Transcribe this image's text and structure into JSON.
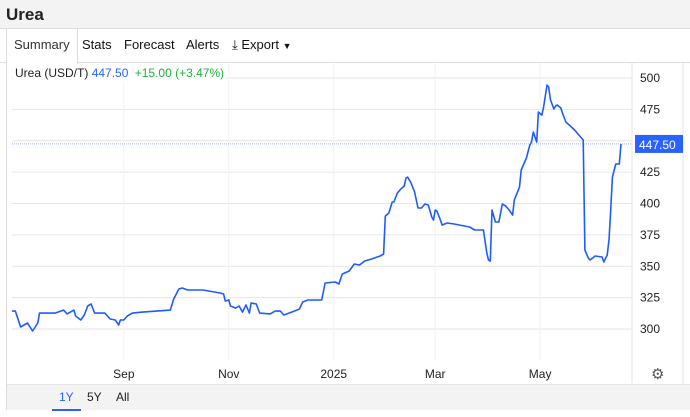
{
  "header": {
    "title": "Urea"
  },
  "tabs": [
    {
      "label": "Summary",
      "active": true
    },
    {
      "label": "Stats"
    },
    {
      "label": "Forecast"
    },
    {
      "label": "Alerts"
    },
    {
      "label": "Export",
      "icon": "download-icon",
      "dropdown": true
    }
  ],
  "legend": {
    "name": "Urea (USD/T)",
    "price": "447.50",
    "change": "+15.00 (+3.47%)"
  },
  "colors": {
    "line": "#1f5cff",
    "price": "#2962ff",
    "change": "#22b03a",
    "badge": "#2962ff"
  },
  "range_buttons": [
    {
      "label": "1Y",
      "active": true
    },
    {
      "label": "5Y"
    },
    {
      "label": "All"
    }
  ],
  "settings_icon": "gear-icon",
  "chart_data": {
    "type": "line",
    "title": "",
    "xlabel": "",
    "ylabel": "",
    "ylim": [
      274.5,
      512
    ],
    "xlim": [
      "2024-06-28",
      "2025-06-17"
    ],
    "y_ticks": [
      300,
      325,
      350,
      375,
      400,
      425,
      450,
      475,
      500
    ],
    "y_tick_labels": [
      "300",
      "325",
      "350",
      "375",
      "400",
      "425",
      "",
      "475",
      "500"
    ],
    "x_ticks": [
      {
        "date": "2024-09-01",
        "label": "Sep"
      },
      {
        "date": "2024-11-01",
        "label": "Nov"
      },
      {
        "date": "2025-01-01",
        "label": "2025"
      },
      {
        "date": "2025-03-01",
        "label": "Mar"
      },
      {
        "date": "2025-05-01",
        "label": "May"
      }
    ],
    "grid": true,
    "last_value": {
      "value": 447.5,
      "label": "447.50"
    },
    "series": [
      {
        "points": [
          [
            "2024-06-28",
            314.3
          ],
          [
            "2024-06-30",
            314.3
          ],
          [
            "2024-07-03",
            301.6
          ],
          [
            "2024-07-07",
            304.8
          ],
          [
            "2024-07-10",
            298.4
          ],
          [
            "2024-07-13",
            304.8
          ],
          [
            "2024-07-14",
            312.7
          ],
          [
            "2024-07-21",
            312.7
          ],
          [
            "2024-07-23",
            312.7
          ],
          [
            "2024-07-28",
            315.1
          ],
          [
            "2024-07-30",
            312.0
          ],
          [
            "2024-08-03",
            315.1
          ],
          [
            "2024-08-04",
            310.4
          ],
          [
            "2024-08-07",
            307.2
          ],
          [
            "2024-08-09",
            311.2
          ],
          [
            "2024-08-11",
            318.3
          ],
          [
            "2024-08-13",
            319.9
          ],
          [
            "2024-08-15",
            312.7
          ],
          [
            "2024-08-21",
            312.7
          ],
          [
            "2024-08-24",
            308.0
          ],
          [
            "2024-08-27",
            307.2
          ],
          [
            "2024-08-29",
            303.2
          ],
          [
            "2024-08-30",
            307.2
          ],
          [
            "2024-09-01",
            307.2
          ],
          [
            "2024-09-03",
            310.4
          ],
          [
            "2024-09-06",
            312.7
          ],
          [
            "2024-09-12",
            313.5
          ],
          [
            "2024-09-28",
            315.1
          ],
          [
            "2024-09-30",
            323.9
          ],
          [
            "2024-10-03",
            331.9
          ],
          [
            "2024-10-05",
            332.7
          ],
          [
            "2024-10-08",
            331.1
          ],
          [
            "2024-10-17",
            331.1
          ],
          [
            "2024-10-27",
            328.7
          ],
          [
            "2024-10-29",
            327.9
          ],
          [
            "2024-10-30",
            322.3
          ],
          [
            "2024-11-01",
            323.1
          ],
          [
            "2024-11-02",
            318.3
          ],
          [
            "2024-11-05",
            316.7
          ],
          [
            "2024-11-07",
            318.3
          ],
          [
            "2024-11-09",
            313.5
          ],
          [
            "2024-11-11",
            319.1
          ],
          [
            "2024-11-13",
            312.7
          ],
          [
            "2024-11-14",
            320.7
          ],
          [
            "2024-11-17",
            319.9
          ],
          [
            "2024-11-19",
            312.7
          ],
          [
            "2024-11-25",
            312.0
          ],
          [
            "2024-11-28",
            314.3
          ],
          [
            "2024-12-01",
            314.3
          ],
          [
            "2024-12-03",
            311.2
          ],
          [
            "2024-12-06",
            312.7
          ],
          [
            "2024-12-12",
            315.9
          ],
          [
            "2024-12-14",
            321.5
          ],
          [
            "2024-12-17",
            323.1
          ],
          [
            "2024-12-25",
            323.1
          ],
          [
            "2024-12-27",
            336.7
          ],
          [
            "2025-01-02",
            337.5
          ],
          [
            "2025-01-04",
            335.9
          ],
          [
            "2025-01-06",
            343.8
          ],
          [
            "2025-01-10",
            346.2
          ],
          [
            "2025-01-13",
            351.8
          ],
          [
            "2025-01-16",
            351.0
          ],
          [
            "2025-01-19",
            354.2
          ],
          [
            "2025-01-23",
            355.8
          ],
          [
            "2025-01-28",
            358.2
          ],
          [
            "2025-01-30",
            359.8
          ],
          [
            "2025-01-31",
            390.0
          ],
          [
            "2025-02-02",
            392.4
          ],
          [
            "2025-02-04",
            401.2
          ],
          [
            "2025-02-05",
            401.2
          ],
          [
            "2025-02-07",
            408.4
          ],
          [
            "2025-02-09",
            411.6
          ],
          [
            "2025-02-11",
            413.9
          ],
          [
            "2025-02-12",
            420.3
          ],
          [
            "2025-02-13",
            421.1
          ],
          [
            "2025-02-15",
            416.3
          ],
          [
            "2025-02-17",
            409.2
          ],
          [
            "2025-02-19",
            396.4
          ],
          [
            "2025-02-21",
            396.4
          ],
          [
            "2025-02-23",
            399.6
          ],
          [
            "2025-02-25",
            398.8
          ],
          [
            "2025-02-27",
            389.2
          ],
          [
            "2025-02-28",
            386.9
          ],
          [
            "2025-03-01",
            394.8
          ],
          [
            "2025-03-02",
            394.0
          ],
          [
            "2025-03-04",
            386.9
          ],
          [
            "2025-03-05",
            382.9
          ],
          [
            "2025-03-08",
            384.5
          ],
          [
            "2025-03-12",
            383.7
          ],
          [
            "2025-03-21",
            381.3
          ],
          [
            "2025-03-24",
            378.9
          ],
          [
            "2025-03-29",
            378.9
          ],
          [
            "2025-03-31",
            360.6
          ],
          [
            "2025-04-01",
            355.0
          ],
          [
            "2025-04-02",
            354.2
          ],
          [
            "2025-04-03",
            394.8
          ],
          [
            "2025-04-05",
            385.3
          ],
          [
            "2025-04-07",
            385.3
          ],
          [
            "2025-04-09",
            399.6
          ],
          [
            "2025-04-11",
            398.0
          ],
          [
            "2025-04-13",
            394.8
          ],
          [
            "2025-04-15",
            390.8
          ],
          [
            "2025-04-16",
            402.8
          ],
          [
            "2025-04-19",
            413.1
          ],
          [
            "2025-04-20",
            426.7
          ],
          [
            "2025-04-23",
            436.3
          ],
          [
            "2025-04-25",
            446.6
          ],
          [
            "2025-04-26",
            449.0
          ],
          [
            "2025-04-27",
            457.0
          ],
          [
            "2025-04-29",
            449.0
          ],
          [
            "2025-04-30",
            472.9
          ],
          [
            "2025-05-02",
            470.5
          ],
          [
            "2025-05-03",
            476.9
          ],
          [
            "2025-05-05",
            494.4
          ],
          [
            "2025-05-06",
            492.8
          ],
          [
            "2025-05-07",
            482.5
          ],
          [
            "2025-05-09",
            475.3
          ],
          [
            "2025-05-10",
            477.7
          ],
          [
            "2025-05-11",
            478.5
          ],
          [
            "2025-05-13",
            476.1
          ],
          [
            "2025-05-14",
            472.1
          ],
          [
            "2025-05-16",
            464.9
          ],
          [
            "2025-05-18",
            462.5
          ],
          [
            "2025-05-21",
            458.6
          ],
          [
            "2025-05-24",
            453.8
          ],
          [
            "2025-05-26",
            450.6
          ],
          [
            "2025-05-27",
            362.9
          ],
          [
            "2025-05-29",
            356.6
          ],
          [
            "2025-05-30",
            355.0
          ],
          [
            "2025-06-02",
            358.2
          ],
          [
            "2025-06-06",
            357.4
          ],
          [
            "2025-06-07",
            353.4
          ],
          [
            "2025-06-09",
            359.0
          ],
          [
            "2025-06-10",
            370.9
          ],
          [
            "2025-06-11",
            394.8
          ],
          [
            "2025-06-12",
            421.1
          ],
          [
            "2025-06-14",
            431.5
          ],
          [
            "2025-06-16",
            431.5
          ],
          [
            "2025-06-17",
            447.5
          ]
        ]
      }
    ]
  }
}
